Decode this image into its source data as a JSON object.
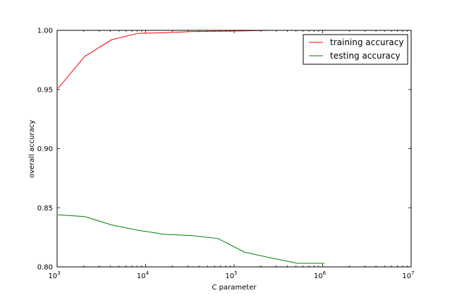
{
  "chart_data": {
    "type": "line",
    "title": "",
    "xlabel": "C parameter",
    "ylabel": "overall accuracy",
    "xscale": "log",
    "xlim": [
      1000,
      10000000
    ],
    "ylim": [
      0.8,
      1.0
    ],
    "grid": false,
    "legend_position": "top-right",
    "x_ticks": [
      {
        "value": 1000,
        "base": "10",
        "exp": "3"
      },
      {
        "value": 10000,
        "base": "10",
        "exp": "4"
      },
      {
        "value": 100000,
        "base": "10",
        "exp": "5"
      },
      {
        "value": 1000000,
        "base": "10",
        "exp": "6"
      },
      {
        "value": 10000000,
        "base": "10",
        "exp": "7"
      }
    ],
    "y_ticks": [
      {
        "value": 0.8,
        "label": "0.80"
      },
      {
        "value": 0.85,
        "label": "0.85"
      },
      {
        "value": 0.9,
        "label": "0.90"
      },
      {
        "value": 0.95,
        "label": "0.95"
      },
      {
        "value": 1.0,
        "label": "1.00"
      }
    ],
    "x": [
      1024,
      2048,
      4096,
      8192,
      16384,
      32768,
      65536,
      131072,
      262144,
      524288,
      1048576
    ],
    "series": [
      {
        "name": "training accuracy",
        "color": "#ff0000",
        "values": [
          0.951,
          0.978,
          0.992,
          0.9975,
          0.998,
          0.999,
          0.9993,
          0.9995,
          1.0,
          1.0,
          1.0
        ]
      },
      {
        "name": "testing accuracy",
        "color": "#008000",
        "values": [
          0.844,
          0.8425,
          0.8355,
          0.831,
          0.8275,
          0.8265,
          0.824,
          0.8125,
          0.8075,
          0.803,
          0.803
        ]
      }
    ]
  }
}
